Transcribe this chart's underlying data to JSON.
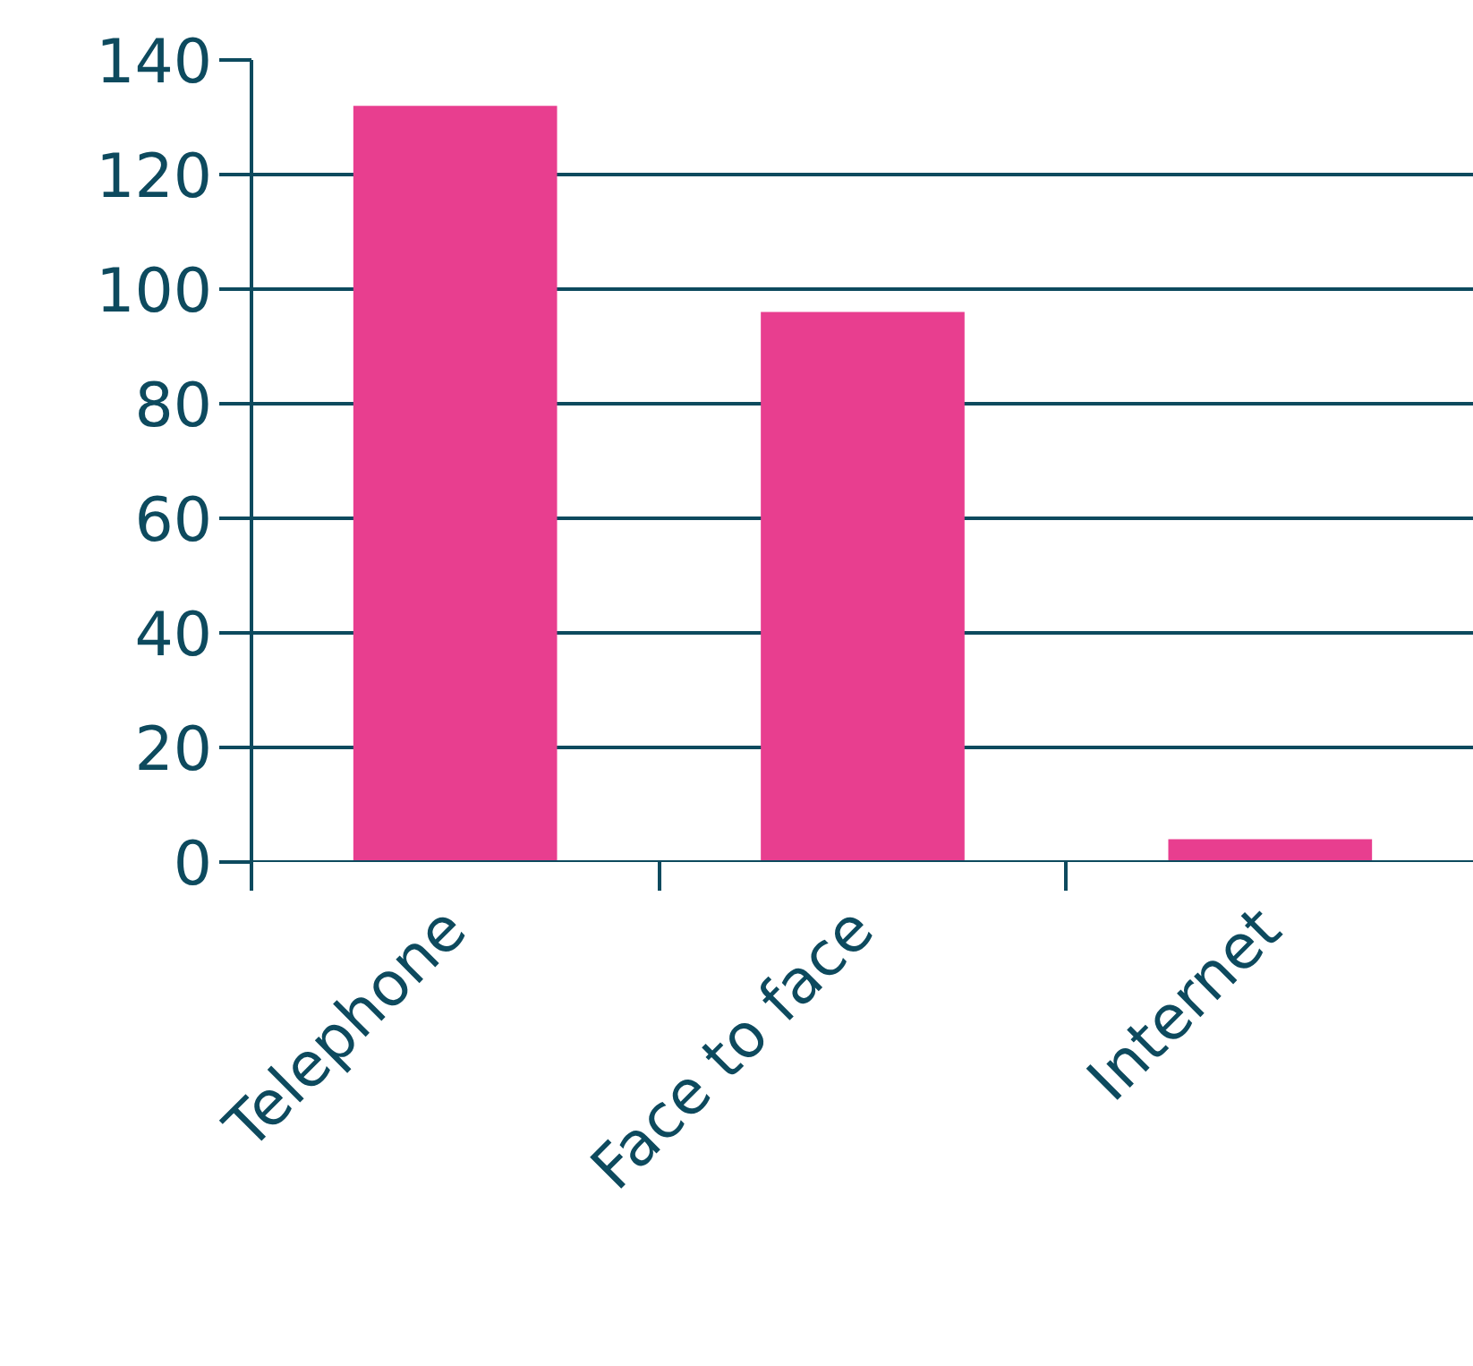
{
  "chart_data": {
    "type": "bar",
    "categories": [
      "Telephone",
      "Face to face",
      "Internet"
    ],
    "values": [
      132,
      96,
      4
    ],
    "color": "#e83e8f",
    "ylim": [
      0,
      140
    ],
    "yticks": [
      0,
      20,
      40,
      60,
      80,
      100,
      120,
      140
    ],
    "grid": "y"
  }
}
